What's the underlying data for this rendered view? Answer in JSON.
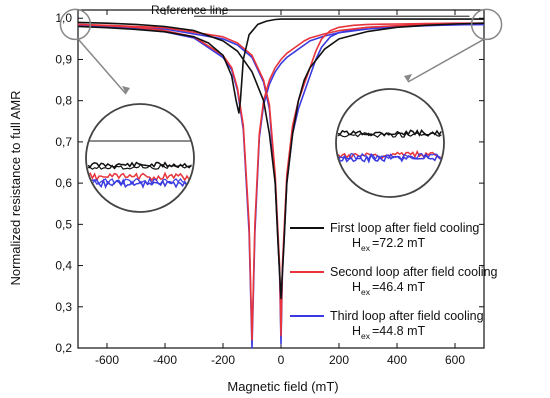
{
  "chart_data": {
    "type": "line",
    "title": "",
    "xlabel": "Magnetic field (mT)",
    "ylabel": "Normalized resistance to full AMR",
    "xlim": [
      -700,
      700
    ],
    "ylim": [
      0.2,
      1.02
    ],
    "grid": false,
    "legend_position": "lower-right",
    "x_ticks": [
      -600,
      -400,
      -200,
      0,
      200,
      400,
      600
    ],
    "x_tick_labels": [
      "-600",
      "-400",
      "-200",
      "0",
      "200",
      "400",
      "600"
    ],
    "y_ticks": [
      0.2,
      0.3,
      0.4,
      0.5,
      0.6,
      0.7,
      0.8,
      0.9,
      1.0
    ],
    "y_tick_labels": [
      "0,2",
      "0,3",
      "0,4",
      "0,5",
      "0,6",
      "0,7",
      "0,8",
      "0,9",
      "1,0"
    ],
    "reference_line": {
      "label": "Reference line",
      "y": 1.0
    },
    "series": [
      {
        "name": "First loop after field cooling",
        "hex_label": {
          "prefix": "H",
          "sub": "ex",
          "value": "=72.2 mT"
        },
        "color": "#111111",
        "branches": [
          {
            "x": [
              -700,
              -600,
              -500,
              -400,
              -300,
              -250,
              -200,
              -170,
              -155,
              -145,
              -140,
              -130,
              -110,
              -80,
              -50,
              -20,
              0,
              30,
              80,
              150,
              250,
              400,
              550,
              700
            ],
            "y": [
              0.98,
              0.977,
              0.973,
              0.967,
              0.955,
              0.94,
              0.91,
              0.86,
              0.8,
              0.77,
              0.8,
              0.9,
              0.96,
              0.985,
              0.993,
              0.997,
              0.998,
              0.998,
              0.998,
              0.998,
              0.998,
              0.998,
              0.998,
              0.998
            ]
          },
          {
            "x": [
              -700,
              -600,
              -500,
              -400,
              -300,
              -200,
              -150,
              -100,
              -60,
              -40,
              -20,
              -10,
              0,
              10,
              20,
              40,
              60,
              80,
              100,
              150,
              200,
              300,
              400,
              500,
              600,
              700
            ],
            "y": [
              0.99,
              0.988,
              0.985,
              0.98,
              0.97,
              0.945,
              0.92,
              0.87,
              0.8,
              0.72,
              0.6,
              0.45,
              0.32,
              0.45,
              0.6,
              0.72,
              0.8,
              0.85,
              0.88,
              0.925,
              0.95,
              0.968,
              0.978,
              0.983,
              0.986,
              0.988
            ]
          }
        ]
      },
      {
        "name": "Second loop after field cooling",
        "hex_label": {
          "prefix": "H",
          "sub": "ex",
          "value": "=46.4 mT"
        },
        "color": "#e8343a",
        "branches": [
          {
            "x": [
              -700,
              -600,
              -500,
              -400,
              -300,
              -200,
              -170,
              -150,
              -130,
              -110,
              -100,
              -90,
              -75,
              -60,
              -40,
              -20,
              0,
              20,
              50,
              80,
              100,
              150,
              200,
              300,
              400,
              500,
              600,
              700
            ],
            "y": [
              0.985,
              0.982,
              0.978,
              0.97,
              0.955,
              0.91,
              0.88,
              0.83,
              0.74,
              0.5,
              0.22,
              0.5,
              0.72,
              0.8,
              0.85,
              0.88,
              0.9,
              0.915,
              0.93,
              0.945,
              0.952,
              0.962,
              0.97,
              0.978,
              0.982,
              0.985,
              0.987,
              0.988
            ]
          },
          {
            "x": [
              -700,
              -600,
              -400,
              -200,
              -150,
              -100,
              -60,
              -40,
              -20,
              -5,
              0,
              5,
              20,
              40,
              60,
              80,
              100,
              120,
              140,
              170,
              200,
              250,
              300,
              400,
              500,
              600,
              700
            ],
            "y": [
              0.985,
              0.983,
              0.977,
              0.955,
              0.94,
              0.91,
              0.85,
              0.79,
              0.62,
              0.4,
              0.23,
              0.4,
              0.62,
              0.74,
              0.8,
              0.84,
              0.88,
              0.92,
              0.95,
              0.97,
              0.978,
              0.983,
              0.985,
              0.986,
              0.987,
              0.988,
              0.988
            ]
          }
        ]
      },
      {
        "name": "Third loop after field cooling",
        "hex_label": {
          "prefix": "H",
          "sub": "ex",
          "value": "=44.8 mT"
        },
        "color": "#3a3ae0",
        "branches": [
          {
            "x": [
              -700,
              -600,
              -500,
              -400,
              -300,
              -200,
              -170,
              -150,
              -130,
              -110,
              -100,
              -90,
              -75,
              -60,
              -40,
              -20,
              0,
              20,
              50,
              80,
              100,
              150,
              200,
              300,
              400,
              500,
              600,
              700
            ],
            "y": [
              0.983,
              0.98,
              0.975,
              0.967,
              0.952,
              0.905,
              0.875,
              0.825,
              0.73,
              0.48,
              0.2,
              0.48,
              0.71,
              0.79,
              0.84,
              0.87,
              0.89,
              0.905,
              0.92,
              0.935,
              0.945,
              0.957,
              0.965,
              0.974,
              0.979,
              0.982,
              0.984,
              0.985
            ]
          },
          {
            "x": [
              -700,
              -600,
              -400,
              -200,
              -150,
              -100,
              -60,
              -40,
              -20,
              -5,
              0,
              5,
              20,
              40,
              60,
              80,
              100,
              120,
              140,
              170,
              200,
              250,
              300,
              400,
              500,
              600,
              700
            ],
            "y": [
              0.983,
              0.981,
              0.974,
              0.95,
              0.935,
              0.905,
              0.845,
              0.78,
              0.6,
              0.38,
              0.21,
              0.38,
              0.6,
              0.72,
              0.78,
              0.82,
              0.86,
              0.9,
              0.93,
              0.955,
              0.965,
              0.973,
              0.978,
              0.981,
              0.983,
              0.984,
              0.985
            ]
          }
        ]
      }
    ],
    "insets": [
      {
        "side": "left",
        "zoom_of_x": -640,
        "noise_levels": {
          "black": 0.66,
          "red": 0.59,
          "blue": 0.55
        },
        "reference_level": 0.8
      },
      {
        "side": "right",
        "zoom_of_x": 640,
        "noise_levels": {
          "black": 0.76,
          "red": 0.63,
          "blue": 0.61
        },
        "reference_level": 0.76
      }
    ]
  }
}
